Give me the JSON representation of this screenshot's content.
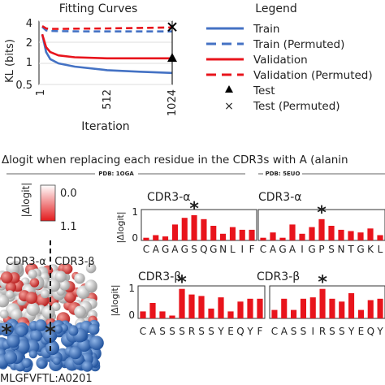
{
  "colors": {
    "train": "#4472c4",
    "validation": "#e8141c",
    "bar": "#e8141c",
    "test_marker": "#000000",
    "colorbar_low": "#ffffff",
    "colorbar_high": "#e31a1c",
    "molecule_bottom": "#2563b0"
  },
  "icons": {
    "test_marker": "triangle-marker",
    "test_permuted_marker": "x-marker",
    "significant": "asterisk"
  },
  "fitting": {
    "title": "Fitting Curves",
    "ylabel": "KL (bits)",
    "xlabel": "Iteration",
    "ytick_labels": [
      "0.5",
      "1",
      "2",
      "4"
    ],
    "xtick_labels": [
      "1",
      "512",
      "1024"
    ]
  },
  "legend": {
    "title": "Legend",
    "items": [
      "Train",
      "Train (Permuted)",
      "Validation",
      "Validation (Permuted)",
      "Test",
      "Test (Permuted)"
    ]
  },
  "section_title": "Δlogit when replacing each residue in the CDR3s with A (alanin",
  "pdb_left": "PDB: 1OGA",
  "pdb_right": "PDB: 5EUO",
  "colorbar": {
    "label": "|Δlogit|",
    "max_label": "0.0",
    "min_label": "1.1"
  },
  "structure": {
    "alpha_label": "CDR3-α",
    "beta_label": "CDR3-β",
    "epitope": "MLGFVFTL:A0201"
  },
  "panels": [
    {
      "title": "CDR3-α",
      "sequence": "CAGAGSQGNLIF",
      "ylabel": "|Δlogit|",
      "yticks": [
        "0",
        "1"
      ]
    },
    {
      "title": "CDR3-α",
      "sequence": "CAGAIGPSNTGKL"
    },
    {
      "title": "CDR3-β",
      "sequence": "CASSSRSSYEQYF",
      "ylabel": "|Δlogit|",
      "yticks": [
        "0",
        "1"
      ]
    },
    {
      "title": "CDR3-β",
      "sequence": "CASSIRSSYEQY"
    }
  ],
  "chart_data": [
    {
      "type": "line",
      "title": "Fitting Curves",
      "xlabel": "Iteration",
      "ylabel": "KL (bits)",
      "ylog": true,
      "xlim": [
        1,
        1024
      ],
      "ylim": [
        0.5,
        4
      ],
      "x": [
        1,
        32,
        64,
        128,
        256,
        512,
        768,
        1024
      ],
      "series": [
        {
          "name": "Train",
          "style": "solid",
          "values": [
            2.6,
            1.45,
            1.15,
            1.0,
            0.9,
            0.8,
            0.76,
            0.73
          ]
        },
        {
          "name": "Train (Permuted)",
          "style": "dashed",
          "values": [
            3.3,
            2.95,
            2.9,
            2.88,
            2.86,
            2.85,
            2.85,
            2.85
          ]
        },
        {
          "name": "Validation",
          "style": "solid",
          "values": [
            2.6,
            1.7,
            1.45,
            1.3,
            1.22,
            1.18,
            1.18,
            1.18
          ]
        },
        {
          "name": "Validation (Permuted)",
          "style": "dashed",
          "values": [
            3.4,
            3.15,
            3.1,
            3.1,
            3.12,
            3.15,
            3.2,
            3.25
          ]
        }
      ],
      "points": [
        {
          "name": "Test",
          "marker": "triangle",
          "x": 1024,
          "y": 1.2
        },
        {
          "name": "Test (Permuted)",
          "marker": "x",
          "x": 1024,
          "y": 3.3
        }
      ]
    },
    {
      "type": "bar",
      "categories": [
        "C",
        "A",
        "G",
        "A",
        "G",
        "S",
        "Q",
        "G",
        "N",
        "L",
        "I",
        "F"
      ],
      "values": [
        0.1,
        0.2,
        0.15,
        0.6,
        0.85,
        0.95,
        0.8,
        0.55,
        0.25,
        0.5,
        0.4,
        0.4
      ],
      "ylim": [
        0,
        1.1
      ],
      "marked": 5
    },
    {
      "type": "bar",
      "categories": [
        "C",
        "A",
        "G",
        "A",
        "I",
        "G",
        "P",
        "S",
        "N",
        "T",
        "G",
        "K",
        "L"
      ],
      "values": [
        0.1,
        0.3,
        0.1,
        0.6,
        0.25,
        0.5,
        0.8,
        0.55,
        0.4,
        0.35,
        0.3,
        0.45,
        0.2
      ],
      "ylim": [
        0,
        1.1
      ],
      "marked": 6
    },
    {
      "type": "bar",
      "categories": [
        "C",
        "A",
        "S",
        "S",
        "S",
        "R",
        "S",
        "S",
        "Y",
        "E",
        "Q",
        "Y",
        "F"
      ],
      "values": [
        0.25,
        0.55,
        0.25,
        0.1,
        1.05,
        0.85,
        0.8,
        0.35,
        0.75,
        0.25,
        0.6,
        0.7,
        0.7
      ],
      "ylim": [
        0,
        1.1
      ],
      "marked": 4
    },
    {
      "type": "bar",
      "categories": [
        "C",
        "A",
        "S",
        "S",
        "I",
        "R",
        "S",
        "S",
        "Y",
        "E",
        "Q",
        "Y"
      ],
      "values": [
        0.3,
        0.7,
        0.3,
        0.7,
        0.75,
        1.05,
        0.7,
        0.6,
        0.9,
        0.3,
        0.65,
        0.7
      ],
      "ylim": [
        0,
        1.1
      ],
      "marked": 5
    }
  ]
}
